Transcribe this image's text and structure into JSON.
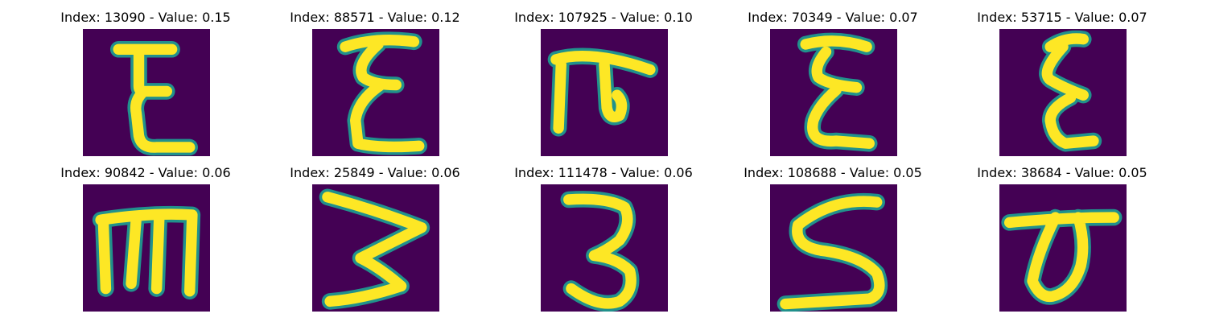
{
  "colors": {
    "background": "#440154",
    "glyph": "#fde725",
    "edge": "#21918c",
    "page": "#ffffff"
  },
  "panels": [
    {
      "title": "Index: 13090 - Value: 0.15",
      "glyph": "epsilon-like shape (E with curved base)"
    },
    {
      "title": "Index: 88571 - Value: 0.12",
      "glyph": "sigma-like zigzag shape"
    },
    {
      "title": "Index: 107925 - Value: 0.10",
      "glyph": "pi-like shape with hook"
    },
    {
      "title": "Index: 70349 - Value: 0.07",
      "glyph": "sigma-like zigzag shape"
    },
    {
      "title": "Index: 53715 - Value: 0.07",
      "glyph": "sigma-like zigzag shape"
    },
    {
      "title": "Index: 90842 - Value: 0.06",
      "glyph": "rotated E / m shape"
    },
    {
      "title": "Index: 25849 - Value: 0.06",
      "glyph": "sideways W / sigma shape"
    },
    {
      "title": "Index: 111478 - Value: 0.06",
      "glyph": "digit 3 shape"
    },
    {
      "title": "Index: 108688 - Value: 0.05",
      "glyph": "S shape"
    },
    {
      "title": "Index: 38684 - Value: 0.05",
      "glyph": "rotated delta / sigma shape"
    }
  ]
}
